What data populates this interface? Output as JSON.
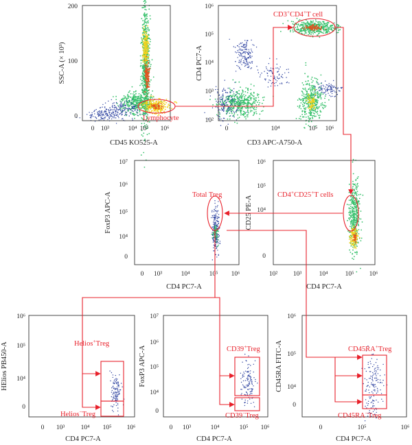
{
  "colors": {
    "gate": "#e8202a",
    "dots": "#2a3f9e",
    "dense": "#35c06a",
    "hot": "#f2d21c",
    "core": "#e5501e"
  },
  "panels": [
    {
      "id": "p1",
      "xlabel": "CD45 KO525-A",
      "ylabel": "SSC-A (× 10³)",
      "xticks": [
        "0",
        "10³",
        "10⁴",
        "10⁵",
        "10⁶"
      ],
      "yticks": [
        "200",
        "100",
        "0"
      ]
    },
    {
      "id": "p2",
      "xlabel": "CD3 APC-A750-A",
      "ylabel": "CD4 PC7-A",
      "xticks": [
        "0",
        "10⁴",
        "10⁵",
        "10⁶"
      ],
      "yticks": [
        "10⁶",
        "10⁵",
        "10⁴",
        "10³",
        "10²"
      ]
    },
    {
      "id": "p3",
      "xlabel": "CD4 PC7-A",
      "ylabel": "CD25 PE-A",
      "xticks": [
        "10²",
        "10³",
        "10⁴",
        "10⁵",
        "10⁶"
      ],
      "yticks": [
        "10⁶",
        "10⁵",
        "10⁴",
        "0"
      ]
    },
    {
      "id": "p4",
      "xlabel": "CD4 PC7-A",
      "ylabel": "FoxP3 APC-A",
      "xticks": [
        "0",
        "10³",
        "10⁴",
        "10⁵",
        "10⁶"
      ],
      "yticks": [
        "10⁷",
        "10⁶",
        "10⁵",
        "10⁴",
        "0"
      ]
    },
    {
      "id": "p5",
      "xlabel": "CD4 PC7-A",
      "ylabel": "HElios PB450-A",
      "xticks": [
        "0",
        "10³",
        "10⁴",
        "10⁵",
        "10⁶"
      ],
      "yticks": [
        "10⁶",
        "10⁵",
        "10⁴",
        "0"
      ]
    },
    {
      "id": "p6",
      "xlabel": "CD4 PC7-A",
      "ylabel": "FoxP3 APC-A",
      "xticks": [
        "0",
        "10³",
        "10⁴",
        "10⁵",
        "10⁶"
      ],
      "yticks": [
        "10⁷",
        "10⁶",
        "10⁵",
        "10⁴",
        "0"
      ]
    },
    {
      "id": "p7",
      "xlabel": "CD4 PC7-A",
      "ylabel": "CD45RA FITC-A",
      "xticks": [
        "0",
        "10⁵",
        "10⁶"
      ],
      "yticks": [
        "10⁶",
        "10⁵",
        "10⁴",
        "0"
      ]
    }
  ],
  "gates": {
    "lymphocyte": "Lymphocyte",
    "cd3cd4_pre": "CD3",
    "cd3cd4_sup1": "+",
    "cd3cd4_mid": "CD4",
    "cd3cd4_sup2": "+",
    "cd3cd4_post": "T cell",
    "cd4cd25_pre": "CD4",
    "cd4cd25_sup1": "+",
    "cd4cd25_mid": "CD25",
    "cd4cd25_sup2": "+",
    "cd4cd25_post": "T cells",
    "total_treg": "Total Treg",
    "helios_pos_pre": "Helios",
    "helios_pos_sup": "+",
    "helios_pos_post": "Treg",
    "helios_neg_pre": "Helios",
    "helios_neg_sup": "−",
    "helios_neg_post": "Treg",
    "cd39_pos_pre": "CD39",
    "cd39_pos_sup": "+",
    "cd39_pos_post": "Treg",
    "cd39_neg_pre": "CD39",
    "cd39_neg_sup": "−",
    "cd39_neg_post": "Treg",
    "cd45ra_pos_pre": "CD45RA",
    "cd45ra_pos_sup": "+",
    "cd45ra_pos_post": "Treg",
    "cd45ra_neg_pre": "CD45RA",
    "cd45ra_neg_sup": "−",
    "cd45ra_neg_post": "Treg"
  }
}
